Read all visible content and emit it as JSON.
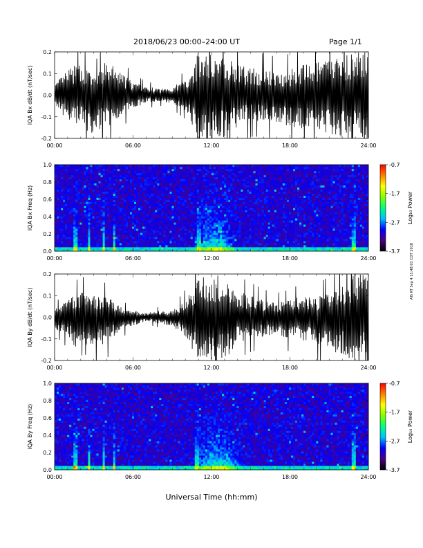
{
  "header": {
    "title": "2018/06/23  00:00–24:00 UT",
    "page": "Page 1/1"
  },
  "footer": {
    "xlabel": "Universal Time (hh:mm)"
  },
  "side_note": "AIS RT Sep 4 11:48:01 CDT 2018",
  "chart_data": [
    {
      "type": "line",
      "ylabel": "IQA Bx dB/dt (nT/sec)",
      "xlim": [
        0,
        24
      ],
      "ylim": [
        -0.2,
        0.2
      ],
      "xticks": [
        "00:00",
        "06:00",
        "12:00",
        "18:00",
        "24:00"
      ],
      "yticks": [
        "0.2",
        "0.1",
        "0.0",
        "-0.1",
        "-0.2"
      ],
      "x": [
        0,
        1,
        2,
        3,
        4,
        5,
        6,
        7,
        8,
        9,
        10,
        11,
        12,
        13,
        14,
        15,
        16,
        17,
        18,
        19,
        20,
        21,
        22,
        23,
        24
      ],
      "upper": [
        0.05,
        0.12,
        0.15,
        0.09,
        0.16,
        0.11,
        0.06,
        0.04,
        0.03,
        0.04,
        0.07,
        0.2,
        0.2,
        0.2,
        0.14,
        0.13,
        0.12,
        0.11,
        0.12,
        0.14,
        0.15,
        0.17,
        0.19,
        0.2,
        0.2
      ],
      "lower": [
        -0.05,
        -0.12,
        -0.15,
        -0.18,
        -0.15,
        -0.1,
        -0.06,
        -0.04,
        -0.03,
        -0.04,
        -0.07,
        -0.2,
        -0.2,
        -0.2,
        -0.15,
        -0.12,
        -0.12,
        -0.13,
        -0.15,
        -0.16,
        -0.17,
        -0.19,
        -0.2,
        -0.2,
        -0.2
      ]
    },
    {
      "type": "heatmap",
      "ylabel": "IQA Bx Freq (Hz)",
      "xlim": [
        0,
        24
      ],
      "ylim": [
        0.0,
        1.0
      ],
      "xticks": [
        "00:00",
        "06:00",
        "12:00",
        "18:00",
        "24:00"
      ],
      "yticks": [
        "1.0",
        "0.8",
        "0.6",
        "0.4",
        "0.2",
        "0.0"
      ],
      "colorbar": {
        "label": "Log₁₀ Power",
        "range": [
          -3.7,
          -0.7
        ],
        "ticks": [
          "-0.7",
          "-1.7",
          "-2.7",
          "-3.7"
        ],
        "colors": [
          "#000000",
          "#4b0082",
          "#0000ff",
          "#00c0ff",
          "#00ff80",
          "#80ff00",
          "#ffff00",
          "#ff8000",
          "#ff0000"
        ]
      },
      "spikes_hours": [
        1.6,
        2.6,
        3.8,
        4.6,
        11.0,
        12.7,
        22.9
      ],
      "active_hours": [
        10.5,
        14.0
      ]
    },
    {
      "type": "line",
      "ylabel": "IQA By dB/dt (nT/sec)",
      "xlim": [
        0,
        24
      ],
      "ylim": [
        -0.2,
        0.2
      ],
      "xticks": [
        "00:00",
        "06:00",
        "12:00",
        "18:00",
        "24:00"
      ],
      "yticks": [
        "0.2",
        "0.1",
        "0.0",
        "-0.1",
        "-0.2"
      ],
      "x": [
        0,
        1,
        2,
        3,
        4,
        5,
        6,
        7,
        8,
        9,
        10,
        11,
        12,
        13,
        14,
        15,
        16,
        17,
        18,
        19,
        20,
        21,
        22,
        23,
        24
      ],
      "upper": [
        0.04,
        0.08,
        0.12,
        0.1,
        0.1,
        0.05,
        0.03,
        0.02,
        0.03,
        0.03,
        0.08,
        0.2,
        0.2,
        0.2,
        0.12,
        0.1,
        0.08,
        0.07,
        0.08,
        0.1,
        0.09,
        0.12,
        0.15,
        0.2,
        0.2
      ],
      "lower": [
        -0.05,
        -0.09,
        -0.2,
        -0.15,
        -0.12,
        -0.06,
        -0.04,
        -0.02,
        -0.03,
        -0.04,
        -0.09,
        -0.2,
        -0.2,
        -0.2,
        -0.12,
        -0.1,
        -0.09,
        -0.08,
        -0.1,
        -0.12,
        -0.12,
        -0.15,
        -0.18,
        -0.2,
        -0.2
      ]
    },
    {
      "type": "heatmap",
      "ylabel": "IQA By Freq (Hz)",
      "xlim": [
        0,
        24
      ],
      "ylim": [
        0.0,
        1.0
      ],
      "xticks": [
        "00:00",
        "06:00",
        "12:00",
        "18:00",
        "24:00"
      ],
      "yticks": [
        "1.0",
        "0.8",
        "0.6",
        "0.4",
        "0.2",
        "0.0"
      ],
      "colorbar": {
        "label": "Log₁₀ Power",
        "range": [
          -3.7,
          -0.7
        ],
        "ticks": [
          "-0.7",
          "-1.7",
          "-2.7",
          "-3.7"
        ],
        "colors": [
          "#000000",
          "#4b0082",
          "#0000ff",
          "#00c0ff",
          "#00ff80",
          "#80ff00",
          "#ffff00",
          "#ff8000",
          "#ff0000"
        ]
      },
      "spikes_hours": [
        1.6,
        2.6,
        3.8,
        4.6,
        10.9,
        12.7,
        22.9
      ],
      "active_hours": [
        10.5,
        14.5
      ]
    }
  ]
}
